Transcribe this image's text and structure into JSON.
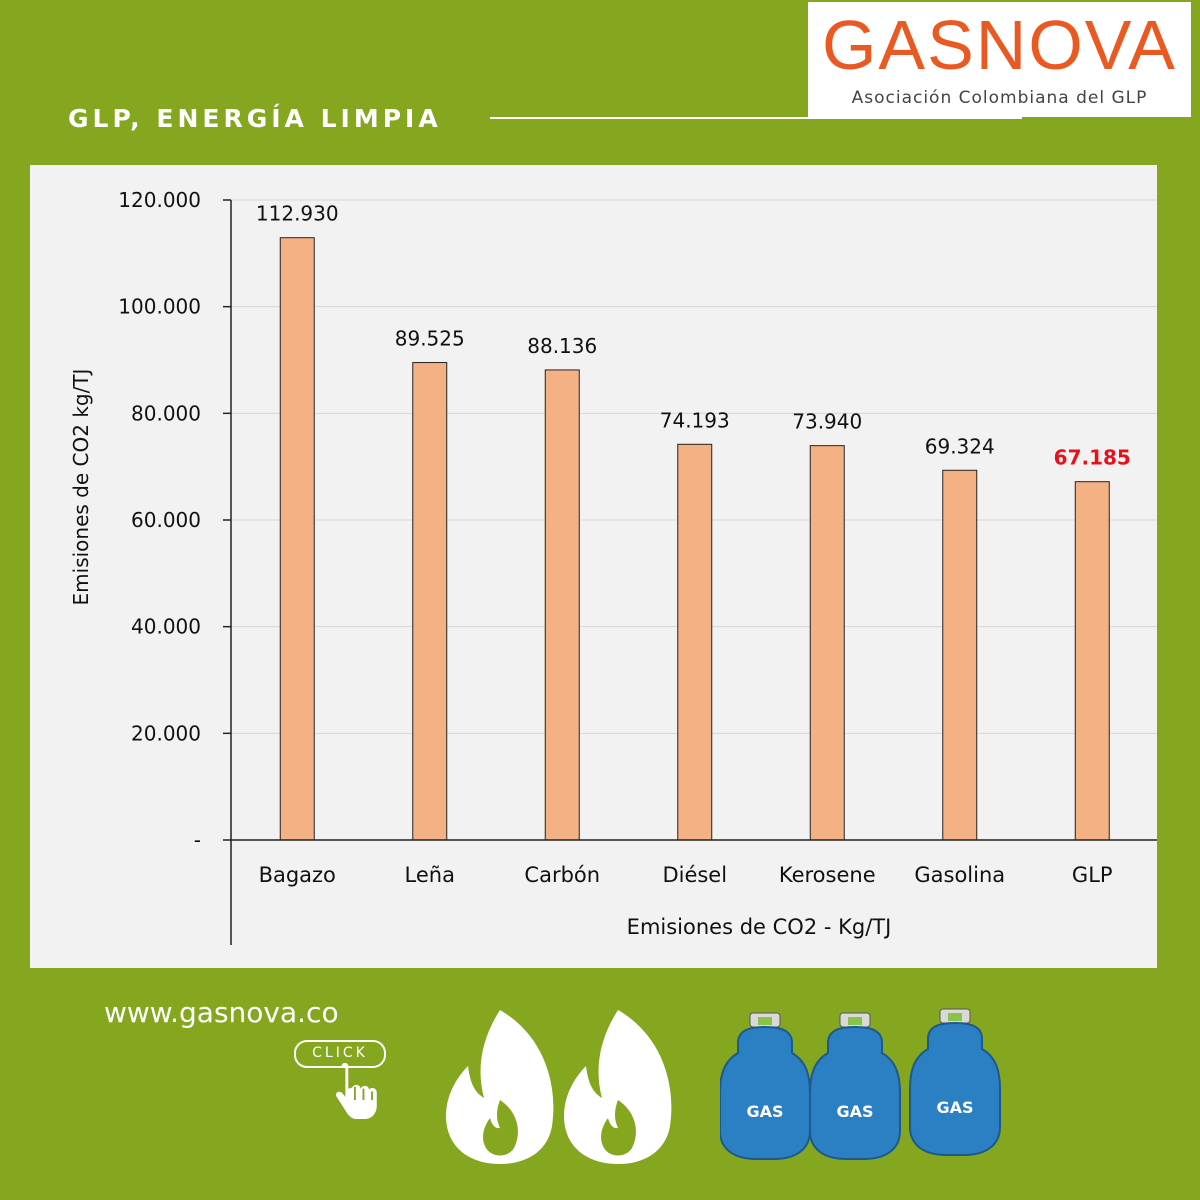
{
  "header": {
    "title": "GLP, ENERGÍA LIMPIA",
    "logo_word": "GASNOVA",
    "logo_subtitle": "Asociación Colombiana del GLP"
  },
  "footer": {
    "url": "www.gasnova.co",
    "click_label": "CLICK",
    "tank_label": "GAS",
    "icons": [
      "hand-pointer-icon",
      "flame-icon",
      "gas-tank-icon"
    ]
  },
  "colors": {
    "background": "#85a720",
    "bar": "#f4b183",
    "highlight_label": "#e8101a",
    "logo": "#e85a22",
    "tank": "#2b7fc3"
  },
  "chart_data": {
    "type": "bar",
    "categories": [
      "Bagazo",
      "Leña",
      "Carbón",
      "Diésel",
      "Kerosene",
      "Gasolina",
      "GLP"
    ],
    "values": [
      112930,
      89525,
      88136,
      74193,
      73940,
      69324,
      67185
    ],
    "value_labels": [
      "112.930",
      "89.525",
      "88.136",
      "74.193",
      "73.940",
      "69.324",
      "67.185"
    ],
    "highlight_index": 6,
    "ylim": [
      0,
      120000
    ],
    "yticks": [
      0,
      20000,
      40000,
      60000,
      80000,
      100000,
      120000
    ],
    "ytick_labels": [
      "-",
      "20.000",
      "40.000",
      "60.000",
      "80.000",
      "100.000",
      "120.000"
    ],
    "ylabel": "Emisiones de CO2 kg/TJ",
    "xlabel": "Emisiones de CO2 - Kg/TJ",
    "grid": true,
    "legend": "none"
  }
}
